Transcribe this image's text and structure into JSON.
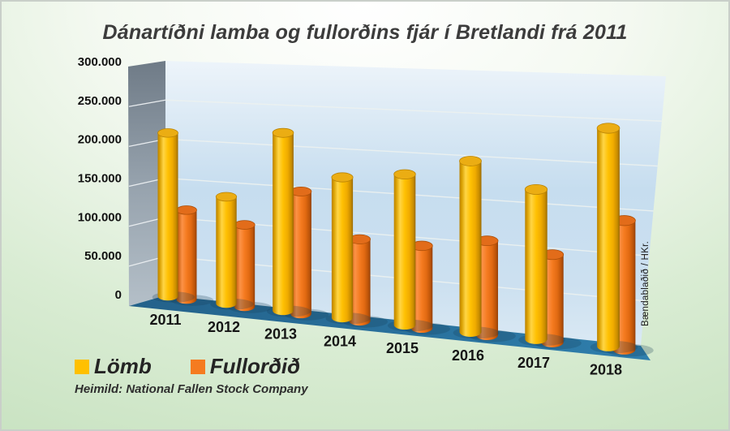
{
  "title": "Dánartíðni lamba og fullorðins fjár í Bretlandi frá 2011",
  "source": "Heimild: National Fallen Stock Company",
  "watermark": "Bændablaðið / HKr.",
  "colors": {
    "lamb": "#FFC000",
    "adult": "#F57B20",
    "floor": "#2B6E99",
    "back_wall": "#C8DEEF",
    "side_wall": "#95A1AC",
    "background_green": "#BDDCB5",
    "title_text": "#3C3C3C"
  },
  "chart_data": {
    "type": "bar",
    "style": "3d-cylinder",
    "title": "Dánartíðni lamba og fullorðins fjár í Bretlandi frá 2011",
    "categories": [
      "2011",
      "2012",
      "2013",
      "2014",
      "2015",
      "2016",
      "2017",
      "2018"
    ],
    "series": [
      {
        "name": "Lömb",
        "color": "#FFC000",
        "values": [
          210000,
          133000,
          215000,
          165000,
          172000,
          190000,
          162000,
          230000
        ]
      },
      {
        "name": "Fullorðið",
        "color": "#F57B20",
        "values": [
          115000,
          102000,
          148000,
          96000,
          94000,
          105000,
          95000,
          136000
        ]
      }
    ],
    "xlabel": "",
    "ylabel": "",
    "ylim": [
      0,
      300000
    ],
    "ytick_step": 50000,
    "ytick_labels": [
      "0",
      "50.000",
      "100.000",
      "150.000",
      "200.000",
      "250.000",
      "300.000"
    ],
    "grid": true,
    "legend_position": "bottom-left"
  }
}
